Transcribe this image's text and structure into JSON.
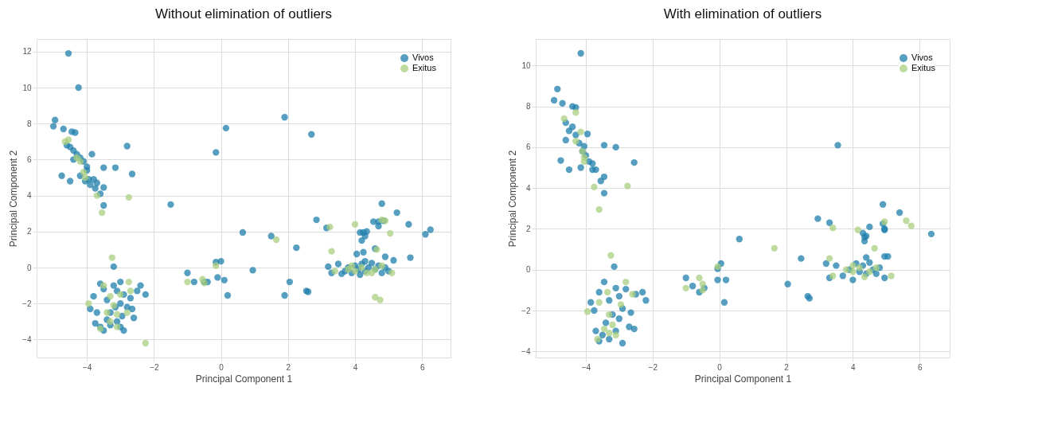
{
  "chart_data": [
    {
      "type": "scatter",
      "title": "Without elimination of outliers",
      "xlabel": "Principal Component 1",
      "ylabel": "Principal Component 2",
      "xlim": [
        -5.5,
        6.85
      ],
      "ylim": [
        -5.0,
        12.7
      ],
      "xticks": [
        -4,
        -2,
        0,
        2,
        4,
        6
      ],
      "yticks": [
        -4,
        -2,
        0,
        2,
        4,
        6,
        8,
        10,
        12
      ],
      "grid": true,
      "legend": "top right",
      "marker": "circle",
      "series": [
        {
          "name": "Vivos",
          "color": "#1f7fab",
          "x": [
            -4.55,
            -4.25,
            -4.95,
            -5.0,
            -4.7,
            -4.45,
            -4.35,
            -2.8,
            -3.85,
            -4.75,
            -4.5,
            -3.5,
            -3.15,
            -2.65,
            -3.5,
            -3.5,
            -1.5,
            0.15,
            -0.15,
            1.9,
            2.7,
            -4.6,
            -4.5,
            -4.4,
            -4.3,
            -4.2,
            -4.4,
            -4.1,
            -4.0,
            -4.0,
            -4.2,
            -3.95,
            -3.9,
            -3.8,
            -3.7,
            -3.75,
            -3.6,
            -4.05,
            -1.0,
            -0.8,
            -0.5,
            -0.4,
            -0.15,
            0.0,
            -0.1,
            0.1,
            0.2,
            0.65,
            0.95,
            1.5,
            2.25,
            1.9,
            2.05,
            2.55,
            2.6,
            2.85,
            3.15,
            4.8,
            5.25,
            4.55,
            4.7,
            4.7,
            4.85,
            5.6,
            6.1,
            6.25,
            4.15,
            4.25,
            4.3,
            4.2,
            4.35,
            4.05,
            4.25,
            4.6,
            5.15,
            5.65,
            4.9,
            3.2,
            3.3,
            3.5,
            3.7,
            3.8,
            3.9,
            4.0,
            4.1,
            4.2,
            4.3,
            4.4,
            4.5,
            4.6,
            4.7,
            4.8,
            4.9,
            5.0,
            4.3,
            3.6,
            4.15,
            -3.2,
            -3.6,
            -3.8,
            -3.9,
            -3.5,
            -3.4,
            -3.3,
            -3.2,
            -3.1,
            -3.0,
            -2.9,
            -2.8,
            -2.7,
            -2.6,
            -2.5,
            -2.4,
            -2.25,
            -3.0,
            -3.75,
            -3.6,
            -3.5,
            -3.3,
            -3.1,
            -3.0,
            -2.9,
            -2.95,
            -3.4,
            -3.7,
            -2.65,
            -3.15
          ],
          "values": [
            11.9,
            10.0,
            8.2,
            7.85,
            7.7,
            7.55,
            7.5,
            6.75,
            6.3,
            5.1,
            4.8,
            5.55,
            5.55,
            5.2,
            4.45,
            3.45,
            3.5,
            7.75,
            6.4,
            8.35,
            7.4,
            6.8,
            6.7,
            6.5,
            6.3,
            6.1,
            6.0,
            5.9,
            5.6,
            5.4,
            5.1,
            4.9,
            4.6,
            4.9,
            4.7,
            4.4,
            4.1,
            4.8,
            -0.3,
            -0.8,
            -0.8,
            -0.8,
            0.3,
            0.35,
            -0.55,
            -0.7,
            -1.55,
            1.95,
            -0.15,
            1.75,
            1.1,
            -1.55,
            -0.8,
            -1.3,
            -1.35,
            2.65,
            2.2,
            3.55,
            3.05,
            2.55,
            2.55,
            2.3,
            2.6,
            2.4,
            1.85,
            2.1,
            1.95,
            1.95,
            1.75,
            1.5,
            2.0,
            0.75,
            0.85,
            1.05,
            0.4,
            0.55,
            0.6,
            0.05,
            -0.3,
            0.2,
            -0.2,
            0.0,
            -0.3,
            0.1,
            -0.1,
            0.2,
            -0.2,
            0.0,
            0.25,
            -0.1,
            0.1,
            -0.3,
            0.0,
            -0.2,
            0.35,
            -0.35,
            -0.4,
            0.05,
            -0.9,
            -1.6,
            -2.3,
            -1.2,
            -1.8,
            -2.5,
            -1.0,
            -1.3,
            -2.0,
            -1.5,
            -2.2,
            -1.7,
            -2.8,
            -1.3,
            -1.0,
            -1.5,
            -0.8,
            -3.1,
            -3.3,
            -3.5,
            -3.2,
            -3.0,
            -3.3,
            -3.5,
            -2.7,
            -2.9,
            -2.5,
            -2.3,
            -2.2
          ]
        },
        {
          "name": "Exitus",
          "color": "#a9cf7f",
          "x": [
            -4.65,
            -4.55,
            -4.3,
            -4.2,
            -4.1,
            -4.05,
            -3.7,
            -3.55,
            -2.75,
            -3.25,
            -3.95,
            -2.25,
            -2.75,
            -3.5,
            -3.3,
            -3.2,
            -3.1,
            -3.3,
            -3.6,
            -3.0,
            -2.8,
            -3.4,
            -2.7,
            -3.1,
            -1.0,
            -0.55,
            -0.5,
            -0.15,
            1.65,
            3.25,
            3.3,
            4.0,
            4.9,
            5.05,
            4.8,
            4.65,
            3.8,
            4.0,
            4.2,
            4.5,
            4.6,
            4.8,
            5.1,
            3.4,
            4.6,
            4.75,
            4.35,
            3.9
          ],
          "values": [
            7.0,
            7.1,
            6.1,
            5.9,
            5.3,
            5.0,
            4.0,
            3.05,
            3.9,
            0.55,
            -2.0,
            -4.2,
            -0.8,
            -1.0,
            -1.6,
            -2.1,
            -2.6,
            -3.0,
            -3.4,
            -1.5,
            -2.5,
            -2.5,
            -1.3,
            -3.3,
            -0.8,
            -0.65,
            -0.85,
            0.1,
            1.55,
            2.25,
            0.9,
            2.4,
            2.6,
            1.9,
            2.65,
            1.0,
            -0.1,
            -0.2,
            0.0,
            -0.3,
            -0.1,
            0.1,
            -0.3,
            -0.2,
            -1.65,
            -1.8,
            -0.3,
            0.1
          ]
        }
      ]
    },
    {
      "type": "scatter",
      "title": "With elimination of outliers",
      "xlabel": "Principal Component 1",
      "ylabel": "Principal Component 2",
      "xlim": [
        -5.5,
        6.9
      ],
      "ylim": [
        -4.3,
        11.3
      ],
      "xticks": [
        -4,
        -2,
        0,
        2,
        4,
        6
      ],
      "yticks": [
        -4,
        -2,
        0,
        2,
        4,
        6,
        8,
        10
      ],
      "grid": true,
      "legend": "top right",
      "marker": "circle",
      "series": [
        {
          "name": "Vivos",
          "color": "#1f7fab",
          "x": [
            -4.15,
            -4.85,
            -4.95,
            -4.7,
            -4.4,
            -4.3,
            -4.6,
            -4.5,
            -4.6,
            -3.95,
            -3.45,
            -3.1,
            -2.55,
            -4.75,
            -4.5,
            -4.15,
            -3.8,
            -3.45,
            -3.55,
            -3.45,
            -4.4,
            -4.3,
            -4.2,
            -4.05,
            -4.1,
            -4.0,
            -3.9,
            -3.8,
            -3.7,
            -3.15,
            -3.45,
            -3.85,
            -3.75,
            -3.6,
            -3.3,
            -3.2,
            -3.1,
            -3.0,
            -2.9,
            -2.8,
            -2.65,
            -2.55,
            -2.5,
            -2.3,
            -2.2,
            -3.7,
            -3.6,
            -3.5,
            -3.3,
            -3.1,
            -2.9,
            -2.7,
            -3.4,
            -3.0,
            -1.0,
            -0.8,
            -0.6,
            -0.45,
            -0.05,
            0.05,
            -0.05,
            0.2,
            0.15,
            0.6,
            2.05,
            2.45,
            2.65,
            2.7,
            2.95,
            3.3,
            3.55,
            4.9,
            5.4,
            6.35,
            4.95,
            4.9,
            4.95,
            4.5,
            4.3,
            4.35,
            4.4,
            4.35,
            3.2,
            3.3,
            3.5,
            3.7,
            3.9,
            4.0,
            4.1,
            4.2,
            4.3,
            4.4,
            4.5,
            4.6,
            4.7,
            4.8,
            4.95,
            4.95,
            5.05,
            4.4
          ],
          "values": [
            10.6,
            8.85,
            8.3,
            8.15,
            8.0,
            7.95,
            7.2,
            6.8,
            6.35,
            6.65,
            6.1,
            6.0,
            5.25,
            5.35,
            4.9,
            5.0,
            5.2,
            4.55,
            4.35,
            3.75,
            7.0,
            6.6,
            6.2,
            6.05,
            5.8,
            5.6,
            5.3,
            4.9,
            4.9,
            0.15,
            -0.6,
            -1.6,
            -2.0,
            -1.1,
            -1.5,
            -2.2,
            -0.9,
            -1.3,
            -1.9,
            -0.95,
            -2.1,
            -2.9,
            -1.2,
            -1.1,
            -1.5,
            -3.0,
            -3.5,
            -3.2,
            -3.4,
            -3.0,
            -3.6,
            -2.8,
            -2.6,
            -2.4,
            -0.4,
            -0.8,
            -1.1,
            -0.9,
            0.05,
            0.3,
            -0.5,
            -0.5,
            -1.6,
            1.5,
            -0.7,
            0.55,
            -1.3,
            -1.4,
            2.5,
            2.3,
            6.1,
            3.2,
            2.8,
            1.75,
            2.0,
            2.25,
            1.95,
            2.1,
            1.8,
            1.4,
            1.65,
            1.6,
            0.3,
            -0.4,
            0.2,
            -0.3,
            0.0,
            -0.5,
            0.3,
            -0.1,
            0.2,
            -0.2,
            0.35,
            0.0,
            -0.2,
            0.1,
            -0.4,
            0.65,
            0.65,
            0.6
          ]
        },
        {
          "name": "Exitus",
          "color": "#a9cf7f",
          "x": [
            -4.3,
            -4.65,
            -4.15,
            -4.3,
            -4.1,
            -4.05,
            -4.05,
            -3.75,
            -2.75,
            -3.6,
            -3.25,
            -2.8,
            -3.95,
            -3.6,
            -3.35,
            -3.3,
            -3.2,
            -3.3,
            -3.65,
            -2.95,
            -2.6,
            -3.1,
            -3.45,
            -1.0,
            -0.6,
            -0.5,
            -0.5,
            -0.05,
            1.65,
            3.3,
            3.4,
            4.15,
            4.95,
            5.6,
            5.75,
            4.65,
            3.8,
            4.0,
            4.2,
            4.35,
            4.55,
            4.7,
            5.15,
            3.4,
            4.0,
            4.5
          ],
          "values": [
            7.7,
            7.4,
            6.75,
            6.3,
            5.8,
            5.5,
            5.3,
            4.05,
            4.1,
            2.95,
            0.7,
            -0.6,
            -2.05,
            -1.6,
            -1.1,
            -2.2,
            -2.7,
            -3.1,
            -3.4,
            -1.7,
            -1.2,
            -3.2,
            -2.9,
            -0.9,
            -0.4,
            -0.7,
            -1.0,
            0.15,
            1.05,
            0.55,
            2.05,
            1.95,
            2.35,
            2.4,
            2.15,
            1.05,
            0.0,
            -0.1,
            0.1,
            -0.35,
            null,
            0.1,
            -0.3,
            -0.3,
            0.2,
            -0.1
          ]
        }
      ]
    }
  ]
}
